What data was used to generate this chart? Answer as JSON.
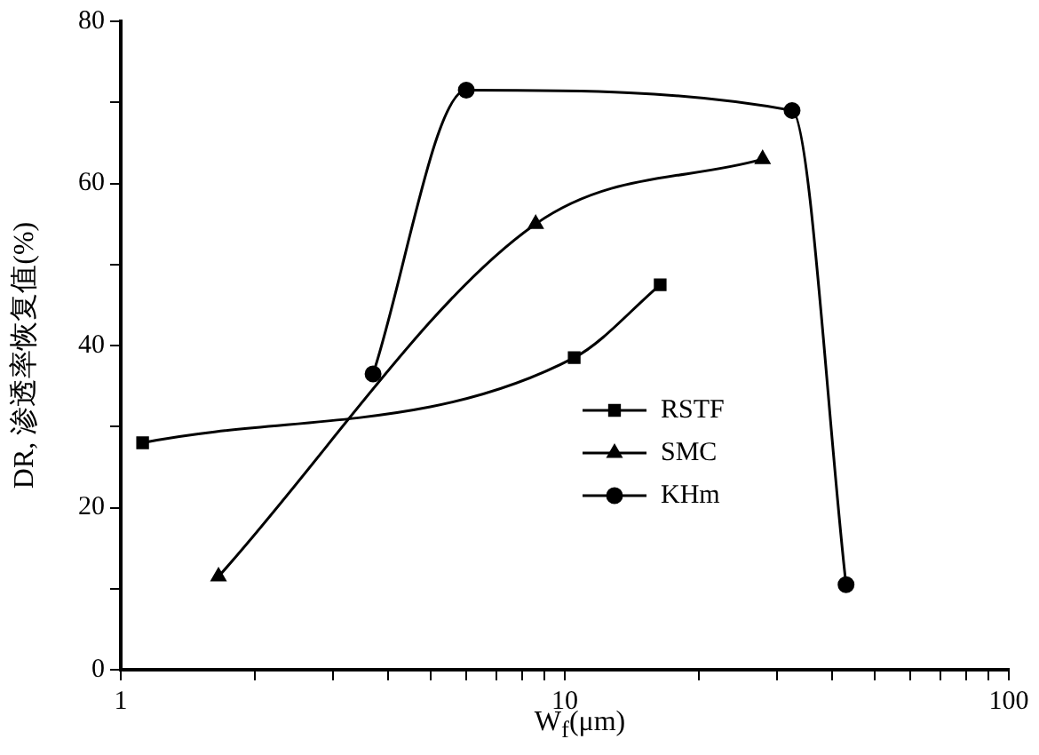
{
  "chart_data": {
    "type": "line",
    "xlabel": "W$_{f}$(μm)",
    "ylabel": "DR, 渗透率恢复值(%)",
    "log": "x",
    "xlim": [
      1,
      100
    ],
    "xticks": [
      1,
      {
        "value": 2,
        "label": null
      },
      {
        "value": 3,
        "label": null
      },
      {
        "value": 4,
        "label": null
      },
      {
        "value": 5,
        "label": null
      },
      {
        "value": 6,
        "label": null
      },
      {
        "value": 7,
        "label": null
      },
      {
        "value": 8,
        "label": null
      },
      {
        "value": 9,
        "label": null
      },
      10,
      {
        "value": 20,
        "label": null
      },
      {
        "value": 30,
        "label": null
      },
      {
        "value": 40,
        "label": null
      },
      {
        "value": 50,
        "label": null
      },
      {
        "value": 60,
        "label": null
      },
      {
        "value": 70,
        "label": null
      },
      {
        "value": 80,
        "label": null
      },
      {
        "value": 90,
        "label": null
      },
      100
    ],
    "ylim": [
      0,
      80
    ],
    "yticks": [
      0,
      {
        "value": 10,
        "label": null
      },
      20,
      {
        "value": 30,
        "label": null
      },
      40,
      {
        "value": 50,
        "label": null
      },
      60,
      {
        "value": 70,
        "label": null
      },
      80
    ],
    "grid": false,
    "legend": "right",
    "line_style": "solid",
    "series": [
      {
        "name": "RSTF",
        "color": "#000000",
        "marker": "square",
        "x": [
          1.12,
          10.5,
          16.4
        ],
        "values": [
          28,
          38.5,
          47.5
        ]
      },
      {
        "name": "SMC",
        "color": "#000000",
        "marker": "triangle",
        "x": [
          1.66,
          8.6,
          27.9
        ],
        "values": [
          11.5,
          55,
          63
        ]
      },
      {
        "name": "KHm",
        "color": "#000000",
        "marker": "circle",
        "x": [
          3.7,
          6.0,
          32.5,
          43
        ],
        "values": [
          36.5,
          71.5,
          69,
          10.5
        ]
      }
    ]
  }
}
